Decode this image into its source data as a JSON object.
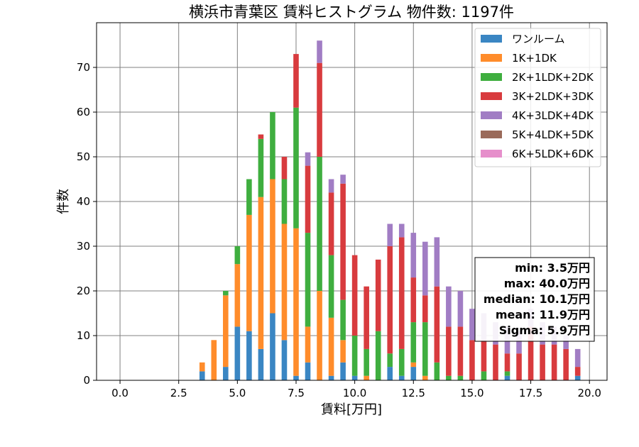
{
  "chart_data": {
    "type": "bar",
    "stacked": true,
    "title": "横浜市青葉区 賃料ヒストグラム  物件数: 1197件",
    "xlabel": "賃料[万円]",
    "ylabel": "件数",
    "xlim": [
      -1.0,
      20.75
    ],
    "ylim": [
      0,
      80
    ],
    "xticks": [
      0.0,
      2.5,
      5.0,
      7.5,
      10.0,
      12.5,
      15.0,
      17.5,
      20.0
    ],
    "xtick_labels": [
      "0.0",
      "2.5",
      "5.0",
      "7.5",
      "10.0",
      "12.5",
      "15.0",
      "17.5",
      "20.0"
    ],
    "yticks": [
      0,
      10,
      20,
      30,
      40,
      50,
      60,
      70
    ],
    "ytick_labels": [
      "0",
      "10",
      "20",
      "30",
      "40",
      "50",
      "60",
      "70"
    ],
    "grid": true,
    "legend_position": "top-right",
    "bin_width": 0.25,
    "x": [
      3.5,
      3.75,
      4.0,
      4.25,
      4.5,
      4.75,
      5.0,
      5.25,
      5.5,
      5.75,
      6.0,
      6.25,
      6.5,
      6.75,
      7.0,
      7.25,
      7.5,
      7.75,
      8.0,
      8.25,
      8.5,
      8.75,
      9.0,
      9.25,
      9.5,
      9.75,
      10.0,
      10.25,
      10.5,
      10.75,
      11.0,
      11.25,
      11.5,
      11.75,
      12.0,
      12.25,
      12.5,
      12.75,
      13.0,
      13.25,
      13.5,
      13.75,
      14.0,
      14.25,
      14.5,
      14.75,
      15.0,
      15.25,
      15.5,
      15.75,
      16.0,
      16.25,
      16.5,
      16.75,
      17.0,
      17.25,
      17.5,
      17.75,
      18.0,
      18.25,
      18.5,
      18.75,
      19.0,
      19.25,
      19.5,
      19.75
    ],
    "series": [
      {
        "name": "ワンルーム",
        "color": "#3a86c3",
        "values": [
          2,
          0,
          0,
          0,
          3,
          0,
          12,
          0,
          11,
          0,
          7,
          0,
          15,
          0,
          9,
          0,
          1,
          0,
          4,
          0,
          0,
          0,
          1,
          0,
          4,
          0,
          1,
          0,
          0,
          0,
          0,
          0,
          3,
          0,
          1,
          0,
          3,
          0,
          0,
          0,
          0,
          0,
          0,
          0,
          0,
          0,
          0,
          0,
          0,
          0,
          0,
          0,
          1,
          0,
          0,
          0,
          0,
          0,
          0,
          0,
          0,
          0,
          0,
          0,
          1,
          0
        ]
      },
      {
        "name": "1K+1DK",
        "color": "#ff8c2b",
        "values": [
          2,
          0,
          9,
          0,
          16,
          0,
          14,
          0,
          26,
          0,
          34,
          0,
          30,
          0,
          26,
          0,
          33,
          0,
          8,
          0,
          20,
          0,
          13,
          0,
          5,
          0,
          0,
          0,
          1,
          0,
          0,
          0,
          0,
          0,
          0,
          0,
          1,
          0,
          1,
          0,
          0,
          0,
          0,
          0,
          0,
          0,
          0,
          0,
          0,
          0,
          0,
          0,
          0,
          0,
          0,
          0,
          0,
          0,
          0,
          0,
          0,
          0,
          0,
          0,
          0,
          0
        ]
      },
      {
        "name": "2K+1LDK+2DK",
        "color": "#3fae3f",
        "values": [
          0,
          0,
          0,
          0,
          1,
          0,
          4,
          0,
          8,
          0,
          13,
          0,
          15,
          0,
          10,
          0,
          27,
          0,
          21,
          0,
          30,
          0,
          14,
          0,
          9,
          0,
          9,
          0,
          6,
          0,
          11,
          0,
          3,
          0,
          6,
          0,
          9,
          0,
          12,
          0,
          4,
          0,
          1,
          0,
          1,
          0,
          0,
          0,
          2,
          0,
          0,
          0,
          1,
          0,
          0,
          0,
          0,
          0,
          0,
          0,
          0,
          0,
          0,
          0,
          0,
          0
        ]
      },
      {
        "name": "3K+2LDK+3DK",
        "color": "#d83b3e",
        "values": [
          0,
          0,
          0,
          0,
          0,
          0,
          0,
          0,
          0,
          0,
          1,
          0,
          0,
          0,
          5,
          0,
          12,
          0,
          15,
          0,
          21,
          0,
          14,
          0,
          26,
          0,
          18,
          0,
          14,
          0,
          16,
          0,
          24,
          0,
          25,
          0,
          10,
          0,
          6,
          0,
          17,
          0,
          11,
          0,
          11,
          0,
          9,
          0,
          7,
          0,
          8,
          0,
          4,
          0,
          6,
          0,
          12,
          0,
          8,
          0,
          8,
          0,
          7,
          0,
          2,
          0
        ]
      },
      {
        "name": "4K+3LDK+4DK",
        "color": "#a17dc4",
        "values": [
          0,
          0,
          0,
          0,
          0,
          0,
          0,
          0,
          0,
          0,
          0,
          0,
          0,
          0,
          0,
          0,
          0,
          0,
          3,
          0,
          5,
          0,
          3,
          0,
          2,
          0,
          0,
          0,
          0,
          0,
          0,
          0,
          5,
          0,
          3,
          0,
          10,
          0,
          12,
          0,
          11,
          0,
          9,
          0,
          8,
          0,
          7,
          0,
          6,
          0,
          5,
          0,
          6,
          0,
          5,
          0,
          4,
          0,
          5,
          0,
          4,
          0,
          3,
          0,
          4,
          0
        ]
      },
      {
        "name": "5K+4LDK+5DK",
        "color": "#9a6a5a",
        "values": [
          0,
          0,
          0,
          0,
          0,
          0,
          0,
          0,
          0,
          0,
          0,
          0,
          0,
          0,
          0,
          0,
          0,
          0,
          0,
          0,
          0,
          0,
          0,
          0,
          0,
          0,
          0,
          0,
          0,
          0,
          0,
          0,
          0,
          0,
          0,
          0,
          0,
          0,
          0,
          0,
          0,
          0,
          0,
          0,
          0,
          0,
          0,
          0,
          0,
          0,
          0,
          0,
          0,
          0,
          0,
          0,
          0,
          0,
          0,
          0,
          0,
          0,
          0,
          0,
          0,
          0
        ]
      },
      {
        "name": "6K+5LDK+6DK",
        "color": "#e68fcb",
        "values": [
          0,
          0,
          0,
          0,
          0,
          0,
          0,
          0,
          0,
          0,
          0,
          0,
          0,
          0,
          0,
          0,
          0,
          0,
          0,
          0,
          0,
          0,
          0,
          0,
          0,
          0,
          0,
          0,
          0,
          0,
          0,
          0,
          0,
          0,
          0,
          0,
          0,
          0,
          0,
          0,
          0,
          0,
          0,
          0,
          0,
          0,
          0,
          0,
          0,
          0,
          0,
          0,
          0,
          0,
          0,
          0,
          0,
          0,
          0,
          0,
          0,
          0,
          0,
          0,
          0,
          0
        ]
      }
    ],
    "annotations": [
      "min: 3.5万円",
      "max: 40.0万円",
      "median: 10.1万円",
      "mean: 11.9万円",
      "Sigma: 5.9万円"
    ]
  }
}
